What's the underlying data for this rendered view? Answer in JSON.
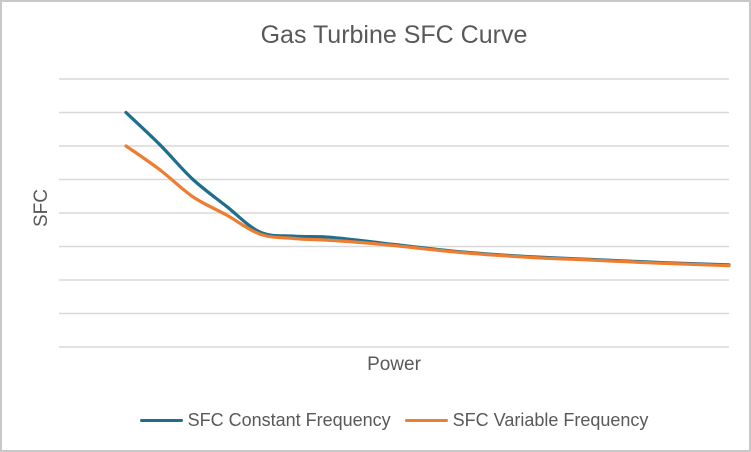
{
  "chart_data": {
    "type": "line",
    "title": "Gas Turbine SFC Curve",
    "xlabel": "Power",
    "ylabel": "SFC",
    "axes_note": "no numeric tick labels shown; x given as fraction of full power axis, y in horizontal-gridline units (bottom gridline = 0)",
    "x": [
      0.1,
      0.15,
      0.2,
      0.25,
      0.3,
      0.35,
      0.4,
      0.45,
      0.5,
      0.6,
      0.7,
      0.8,
      0.9,
      1.0
    ],
    "series": [
      {
        "name": "SFC Constant Frequency",
        "color": "#1F6E8C",
        "values": [
          7.0,
          6.05,
          5.0,
          4.2,
          3.43,
          3.31,
          3.28,
          3.18,
          3.06,
          2.84,
          2.7,
          2.61,
          2.52,
          2.45
        ]
      },
      {
        "name": "SFC Variable Frequency",
        "color": "#ED7D31",
        "values": [
          6.0,
          5.3,
          4.48,
          3.94,
          3.37,
          3.24,
          3.19,
          3.12,
          3.03,
          2.82,
          2.68,
          2.59,
          2.5,
          2.43
        ]
      }
    ],
    "xlim": [
      0,
      1
    ],
    "ylim": [
      0,
      8
    ],
    "gridlines": {
      "horizontal": true,
      "step": 1,
      "color": "#D9D9D9"
    },
    "legend_position": "bottom"
  },
  "colors": {
    "text": "#595959",
    "background": "#FFFFFF",
    "frame_border": "#C8C8C8"
  }
}
